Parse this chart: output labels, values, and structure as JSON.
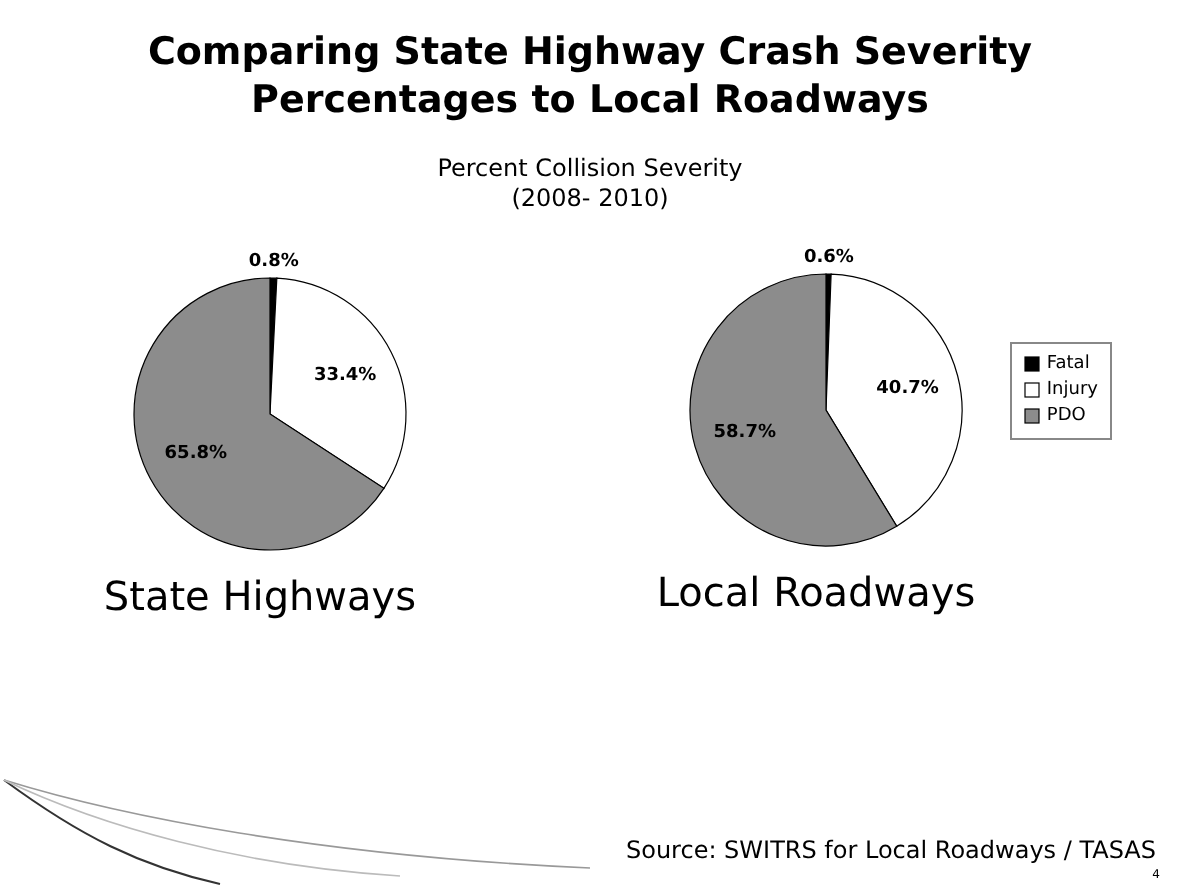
{
  "chart_data": [
    {
      "type": "pie",
      "title": "Comparing State Highway Crash Severity Percentages to Local Roadways",
      "subtitle": "Percent Collision Severity (2008- 2010)",
      "xlabel": "State Highways",
      "categories": [
        null,
        null,
        null
      ],
      "values": [
        0.8,
        33.4,
        65.8
      ],
      "value_labels": [
        "0.8%",
        "33.4%",
        "65.8%"
      ],
      "colors": [
        "#000000",
        "#ffffff",
        "#8c8c8c"
      ],
      "legend": false
    },
    {
      "type": "pie",
      "xlabel": "Local Roadways",
      "categories": [
        "Fatal",
        "Injury",
        "PDO"
      ],
      "values": [
        0.6,
        40.7,
        58.7
      ],
      "value_labels": [
        "0.6%",
        "40.7%",
        "58.7%"
      ],
      "colors": [
        "#000000",
        "#ffffff",
        "#8c8c8c"
      ],
      "legend": "right",
      "annotations": [
        "Source: SWITRS for Local Roadways / TASAS",
        "4"
      ]
    }
  ]
}
